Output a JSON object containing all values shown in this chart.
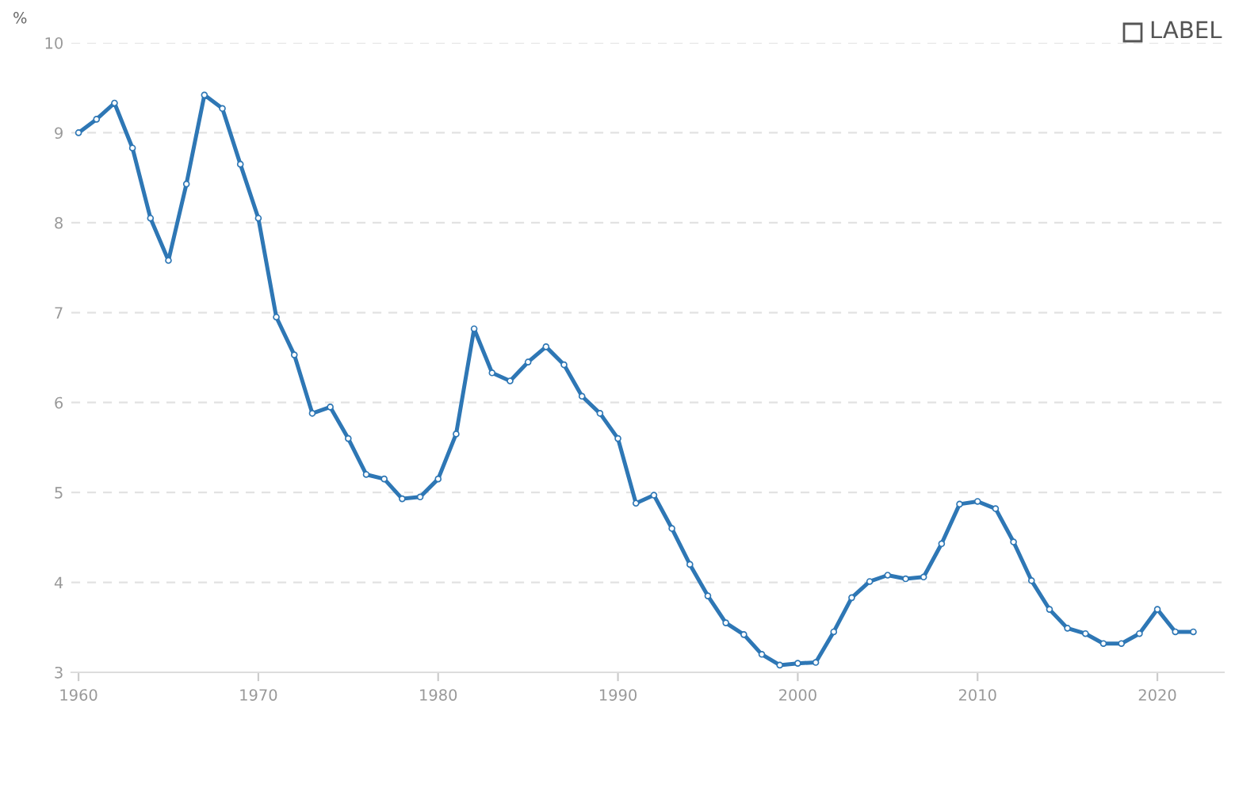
{
  "chart_data": {
    "type": "line",
    "ylabel": "%",
    "annotations": [
      "LABEL"
    ],
    "x": [
      1960,
      1961,
      1962,
      1963,
      1964,
      1965,
      1966,
      1967,
      1968,
      1969,
      1970,
      1971,
      1972,
      1973,
      1974,
      1975,
      1976,
      1977,
      1978,
      1979,
      1980,
      1981,
      1982,
      1983,
      1984,
      1985,
      1986,
      1987,
      1988,
      1989,
      1990,
      1991,
      1992,
      1993,
      1994,
      1995,
      1996,
      1997,
      1998,
      1999,
      2000,
      2001,
      2002,
      2003,
      2004,
      2005,
      2006,
      2007,
      2008,
      2009,
      2010,
      2011,
      2012,
      2013,
      2014,
      2015,
      2016,
      2017,
      2018,
      2019,
      2020,
      2021,
      2022
    ],
    "series": [
      {
        "color": "#2e77b5",
        "values": [
          9.0,
          9.15,
          9.33,
          8.83,
          8.05,
          7.58,
          8.43,
          9.42,
          9.27,
          8.65,
          8.05,
          6.95,
          6.53,
          5.88,
          5.95,
          5.6,
          5.2,
          5.15,
          4.93,
          4.95,
          5.15,
          5.65,
          6.82,
          6.33,
          6.24,
          6.45,
          6.62,
          6.42,
          6.07,
          5.88,
          5.6,
          4.88,
          4.97,
          4.6,
          4.2,
          3.85,
          3.55,
          3.42,
          3.2,
          3.08,
          3.1,
          3.11,
          3.45,
          3.83,
          4.01,
          4.08,
          4.04,
          4.06,
          4.43,
          4.87,
          4.9,
          4.82,
          4.45,
          4.02,
          3.7,
          3.49,
          3.43,
          3.32,
          3.32,
          3.43,
          3.7,
          3.45,
          3.45
        ]
      }
    ],
    "xlim": [
      1959.6,
      2023.7
    ],
    "xticks": [
      1960,
      1970,
      1980,
      1990,
      2000,
      2010,
      2020
    ],
    "ylim": [
      3,
      10
    ],
    "yticks": [
      3,
      4,
      5,
      6,
      7,
      8,
      9,
      10
    ],
    "grid": "y",
    "legend": false,
    "marker": "circle",
    "line_style": "solid"
  }
}
